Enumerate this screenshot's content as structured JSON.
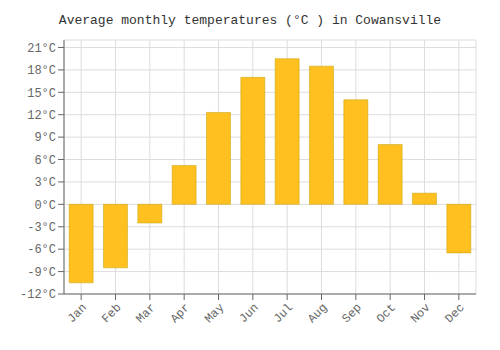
{
  "chart_data": {
    "type": "bar",
    "title": "Average monthly temperatures (°C ) in Cowansville",
    "categories": [
      "Jan",
      "Feb",
      "Mar",
      "Apr",
      "May",
      "Jun",
      "Jul",
      "Aug",
      "Sep",
      "Oct",
      "Nov",
      "Dec"
    ],
    "values": [
      -10.5,
      -8.5,
      -2.5,
      5.2,
      12.3,
      17.0,
      19.5,
      18.5,
      14.0,
      8.0,
      1.5,
      -6.5
    ],
    "color": "#FFC020",
    "ylim": [
      -12,
      22
    ],
    "yticks": [
      {
        "value": -12,
        "label": "-12°C"
      },
      {
        "value": -9,
        "label": "-9°C"
      },
      {
        "value": -6,
        "label": "-6°C"
      },
      {
        "value": -3,
        "label": "-3°C"
      },
      {
        "value": 0,
        "label": "0°C"
      },
      {
        "value": 3,
        "label": "3°C"
      },
      {
        "value": 6,
        "label": "6°C"
      },
      {
        "value": 9,
        "label": "9°C"
      },
      {
        "value": 12,
        "label": "12°C"
      },
      {
        "value": 15,
        "label": "15°C"
      },
      {
        "value": 18,
        "label": "18°C"
      },
      {
        "value": 21,
        "label": "21°C"
      }
    ],
    "grid": true
  }
}
